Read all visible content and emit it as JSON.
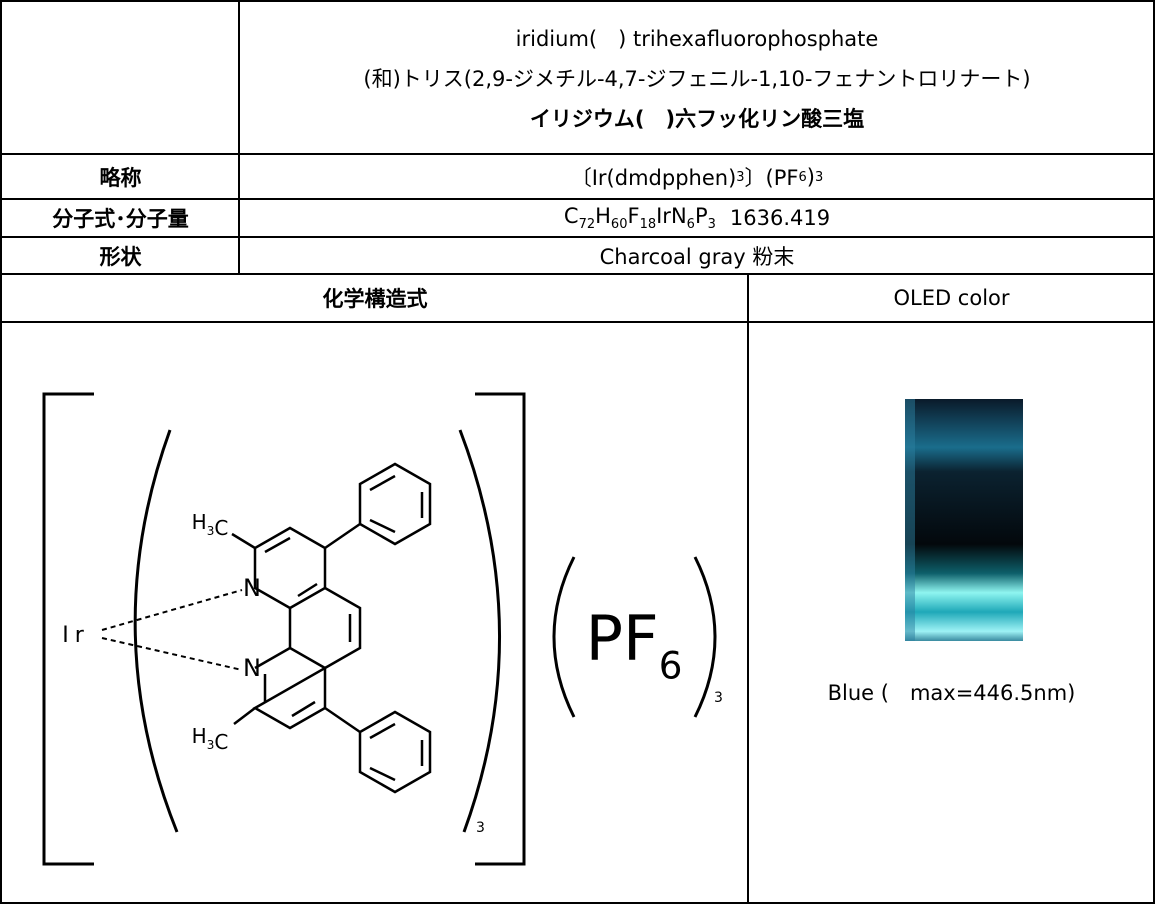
{
  "header": {
    "lines": [
      "iridium(　) trihexafluorophosphate",
      "(和)トリス(2,9-ジメチル-4,7-ジフェニル-1,10-フェナントロリナート)",
      "イリジウム(　)六フッ化リン酸三塩"
    ]
  },
  "rows": [
    {
      "label": "略称",
      "segments": [
        {
          "text": "〔Ir(dmdpphen)",
          "sub": "3"
        },
        {
          "text": "〕(PF",
          "sub": "6"
        },
        {
          "text": ")",
          "sub": "3"
        }
      ]
    },
    {
      "label": "分子式･分子量",
      "segments": [
        {
          "text": "C",
          "sub": "72"
        },
        {
          "text": "H",
          "sub": "60"
        },
        {
          "text": "F",
          "sub": "18"
        },
        {
          "text": "Ir"
        },
        {
          "text": "N",
          "sub": "6"
        },
        {
          "text": "P",
          "sub": "3"
        }
      ],
      "weight": 1636.419
    },
    {
      "label": "形状",
      "value": "Charcoal gray 粉末"
    }
  ],
  "section": {
    "structure_title": "化学構造式",
    "color_title": "OLED color",
    "color_caption": "Blue (　max=446.5nm)"
  },
  "structure": {
    "methyl": [
      {
        "text": "H",
        "sub": "3"
      },
      {
        "text": "C"
      }
    ],
    "nitrogen": "N",
    "metal": "Ir",
    "anion": [
      {
        "text": "PF",
        "sub": "6"
      }
    ],
    "ligand_count": "3",
    "anion_count": "3"
  }
}
